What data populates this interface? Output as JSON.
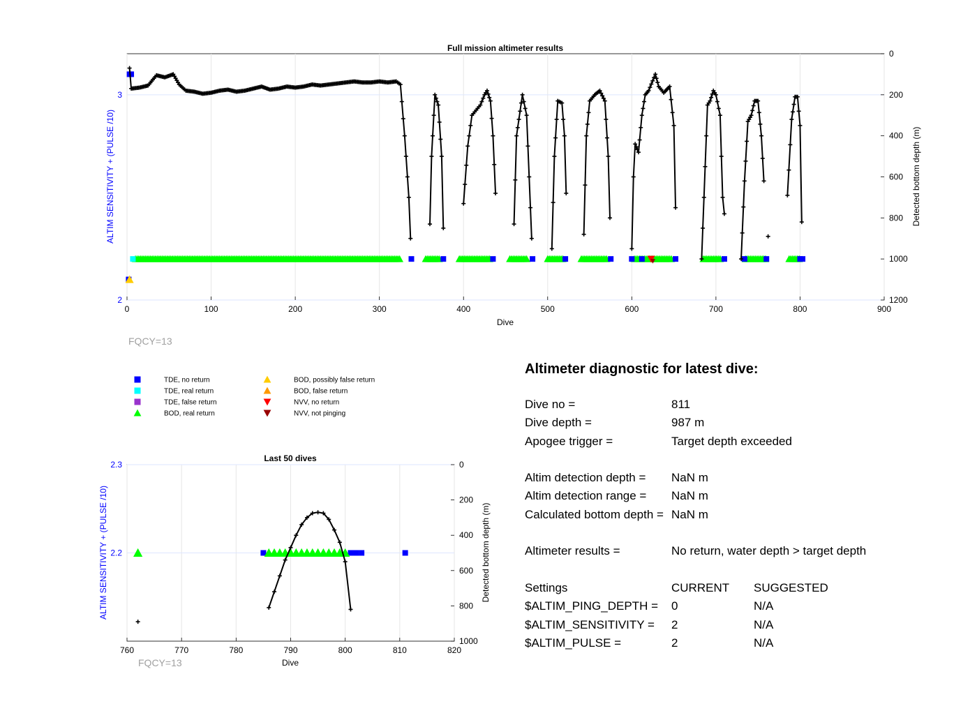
{
  "top_chart": {
    "title": "Full mission altimeter results",
    "xlabel": "Dive",
    "ylabel_left": "ALTIM SENSITIVITY + (PULSE /10)",
    "ylabel_right": "Detected bottom depth (m)",
    "xticks": [
      "0",
      "100",
      "200",
      "300",
      "400",
      "500",
      "600",
      "700",
      "800",
      "900"
    ],
    "yticks_left": [
      "2",
      "3"
    ],
    "yticks_right": [
      "0",
      "200",
      "400",
      "600",
      "800",
      "1000",
      "1200"
    ],
    "footer": "FQCY=13"
  },
  "bottom_chart": {
    "title": "Last 50 dives",
    "xlabel": "Dive",
    "ylabel_left": "ALTIM SENSITIVITY + (PULSE /10)",
    "ylabel_right": "Detected bottom depth (m)",
    "xticks": [
      "760",
      "770",
      "780",
      "790",
      "800",
      "810",
      "820"
    ],
    "yticks_left": [
      "2.2",
      "2.3"
    ],
    "yticks_right": [
      "0",
      "200",
      "400",
      "600",
      "800",
      "1000"
    ],
    "footer": "FQCY=13"
  },
  "legend": [
    {
      "label": "TDE, no return",
      "marker": "square",
      "color": "#0000ff"
    },
    {
      "label": "TDE, real return",
      "marker": "square",
      "color": "#00ffff"
    },
    {
      "label": "TDE, false return",
      "marker": "square",
      "color": "#9933cc"
    },
    {
      "label": "BOD, real return",
      "marker": "triangle-up",
      "color": "#00ff00"
    },
    {
      "label": "BOD, possibly false return",
      "marker": "triangle-up",
      "color": "#ffcc00"
    },
    {
      "label": "BOD, false return",
      "marker": "triangle-up",
      "color": "#ff9900"
    },
    {
      "label": "NVV, no return",
      "marker": "triangle-down",
      "color": "#ff0000"
    },
    {
      "label": "NVV, not pinging",
      "marker": "triangle-down",
      "color": "#990000"
    }
  ],
  "diagnostic": {
    "title": "Altimeter diagnostic for latest dive:",
    "dive_no_label": "Dive no =",
    "dive_no": "811",
    "dive_depth_label": "Dive depth =",
    "dive_depth": "987 m",
    "apogee_label": "Apogee trigger =",
    "apogee": "Target depth exceeded",
    "det_depth_label": "Altim detection depth =",
    "det_depth": "NaN m",
    "det_range_label": "Altim detection range =",
    "det_range": "NaN m",
    "calc_depth_label": "Calculated bottom depth =",
    "calc_depth": "NaN m",
    "results_label": "Altimeter results =",
    "results": "No return, water depth > target depth",
    "settings_label": "Settings",
    "current_label": "CURRENT",
    "suggested_label": "SUGGESTED",
    "ping_label": "$ALTIM_PING_DEPTH =",
    "ping_current": "0",
    "ping_suggested": "N/A",
    "sens_label": "$ALTIM_SENSITIVITY =",
    "sens_current": "2",
    "sens_suggested": "N/A",
    "pulse_label": "$ALTIM_PULSE =",
    "pulse_current": "2",
    "pulse_suggested": "N/A"
  },
  "chart_data": [
    {
      "type": "scatter",
      "name_ref": "top",
      "xlim": [
        0,
        900
      ],
      "ylim_left": [
        2,
        3.2
      ],
      "ylim_right": [
        1200,
        0
      ],
      "grid": true,
      "depth_series_keypoints": [
        [
          3,
          70
        ],
        [
          5,
          170
        ],
        [
          15,
          165
        ],
        [
          25,
          155
        ],
        [
          35,
          105
        ],
        [
          45,
          115
        ],
        [
          55,
          100
        ],
        [
          62,
          150
        ],
        [
          70,
          180
        ],
        [
          80,
          185
        ],
        [
          90,
          195
        ],
        [
          100,
          190
        ],
        [
          110,
          180
        ],
        [
          120,
          175
        ],
        [
          130,
          185
        ],
        [
          140,
          180
        ],
        [
          150,
          170
        ],
        [
          160,
          160
        ],
        [
          170,
          175
        ],
        [
          180,
          170
        ],
        [
          190,
          160
        ],
        [
          200,
          165
        ],
        [
          210,
          160
        ],
        [
          220,
          150
        ],
        [
          230,
          155
        ],
        [
          240,
          150
        ],
        [
          250,
          145
        ],
        [
          260,
          140
        ],
        [
          270,
          135
        ],
        [
          280,
          140
        ],
        [
          290,
          140
        ],
        [
          300,
          135
        ],
        [
          310,
          140
        ],
        [
          320,
          135
        ],
        [
          325,
          150
        ],
        [
          330,
          400
        ],
        [
          335,
          700
        ],
        [
          337,
          900
        ],
        [
          360,
          830
        ],
        [
          362,
          500
        ],
        [
          366,
          200
        ],
        [
          370,
          250
        ],
        [
          374,
          500
        ],
        [
          376,
          850
        ],
        [
          400,
          730
        ],
        [
          405,
          450
        ],
        [
          410,
          300
        ],
        [
          415,
          275
        ],
        [
          420,
          250
        ],
        [
          425,
          200
        ],
        [
          428,
          180
        ],
        [
          432,
          230
        ],
        [
          435,
          400
        ],
        [
          438,
          680
        ],
        [
          460,
          830
        ],
        [
          463,
          400
        ],
        [
          470,
          200
        ],
        [
          475,
          300
        ],
        [
          478,
          600
        ],
        [
          481,
          900
        ],
        [
          505,
          950
        ],
        [
          508,
          500
        ],
        [
          512,
          230
        ],
        [
          517,
          240
        ],
        [
          520,
          400
        ],
        [
          522,
          680
        ],
        [
          543,
          880
        ],
        [
          546,
          400
        ],
        [
          550,
          230
        ],
        [
          556,
          200
        ],
        [
          562,
          180
        ],
        [
          568,
          230
        ],
        [
          572,
          500
        ],
        [
          574,
          800
        ],
        [
          600,
          950
        ],
        [
          602,
          600
        ],
        [
          604,
          440
        ],
        [
          608,
          480
        ],
        [
          612,
          300
        ],
        [
          616,
          200
        ],
        [
          620,
          180
        ],
        [
          628,
          100
        ],
        [
          632,
          160
        ],
        [
          638,
          190
        ],
        [
          645,
          160
        ],
        [
          650,
          350
        ],
        [
          652,
          750
        ],
        [
          683,
          1000
        ],
        [
          690,
          250
        ],
        [
          693,
          230
        ],
        [
          697,
          180
        ],
        [
          700,
          200
        ],
        [
          705,
          300
        ],
        [
          708,
          700
        ],
        [
          710,
          780
        ],
        [
          730,
          1000
        ],
        [
          734,
          620
        ],
        [
          738,
          330
        ],
        [
          742,
          300
        ],
        [
          746,
          230
        ],
        [
          750,
          230
        ],
        [
          754,
          400
        ],
        [
          757,
          620
        ],
        [
          785,
          690
        ],
        [
          790,
          320
        ],
        [
          794,
          210
        ],
        [
          797,
          210
        ],
        [
          800,
          350
        ],
        [
          802,
          820
        ]
      ],
      "depth_outliers": [
        [
          762,
          890
        ]
      ],
      "setting_points": {
        "TDE no return": [
          [
            2,
            2.1
          ],
          [
            3,
            3.1
          ],
          [
            5,
            3.1
          ],
          [
            338,
            2.2
          ],
          [
            376,
            2.2
          ],
          [
            435,
            2.2
          ],
          [
            482,
            2.2
          ],
          [
            521,
            2.2
          ],
          [
            575,
            2.2
          ],
          [
            600,
            2.2
          ],
          [
            612,
            2.2
          ],
          [
            652,
            2.2
          ],
          [
            710,
            2.2
          ],
          [
            734,
            2.2
          ],
          [
            760,
            2.2
          ],
          [
            800,
            2.2
          ],
          [
            803,
            2.2
          ]
        ],
        "TDE real return": [
          [
            7,
            2.2
          ]
        ],
        "BOD real return": [
          [
            10,
            2.2
          ],
          [
            325,
            2.2
          ],
          [
            355,
            2.2
          ],
          [
            372,
            2.2
          ],
          [
            395,
            2.2
          ],
          [
            432,
            2.2
          ],
          [
            455,
            2.2
          ],
          [
            476,
            2.2
          ],
          [
            500,
            2.2
          ],
          [
            518,
            2.2
          ],
          [
            540,
            2.2
          ],
          [
            570,
            2.2
          ],
          [
            603,
            2.2
          ],
          [
            648,
            2.2
          ],
          [
            685,
            2.2
          ],
          [
            705,
            2.2
          ],
          [
            735,
            2.2
          ],
          [
            760,
            2.2
          ],
          [
            787,
            2.2
          ],
          [
            800,
            2.2
          ]
        ],
        "BOD possibly false return": [
          [
            3,
            2.1
          ]
        ],
        "NVV no return": [
          [
            623,
            2.2
          ]
        ],
        "NVV not pinging": [
          [
            625,
            2.19
          ]
        ]
      }
    },
    {
      "type": "scatter",
      "name_ref": "bottom",
      "xlim": [
        760,
        820
      ],
      "ylim_left": [
        2.1,
        2.3
      ],
      "ylim_right": [
        1000,
        0
      ],
      "grid": true,
      "depth_series": [
        [
          786,
          810
        ],
        [
          787,
          720
        ],
        [
          788,
          630
        ],
        [
          789,
          540
        ],
        [
          790,
          470
        ],
        [
          791,
          400
        ],
        [
          792,
          340
        ],
        [
          793,
          300
        ],
        [
          794,
          275
        ],
        [
          795,
          270
        ],
        [
          796,
          275
        ],
        [
          797,
          310
        ],
        [
          798,
          370
        ],
        [
          799,
          440
        ],
        [
          800,
          550
        ],
        [
          801,
          820
        ]
      ],
      "depth_outliers": [
        [
          762,
          890
        ]
      ],
      "tde_no_return": [
        785,
        801,
        802,
        803,
        811
      ],
      "bod_real_return": [
        762,
        786,
        787,
        788,
        789,
        790,
        791,
        792,
        793,
        794,
        795,
        796,
        797,
        798,
        799,
        800
      ],
      "setting_value": 2.2
    }
  ]
}
